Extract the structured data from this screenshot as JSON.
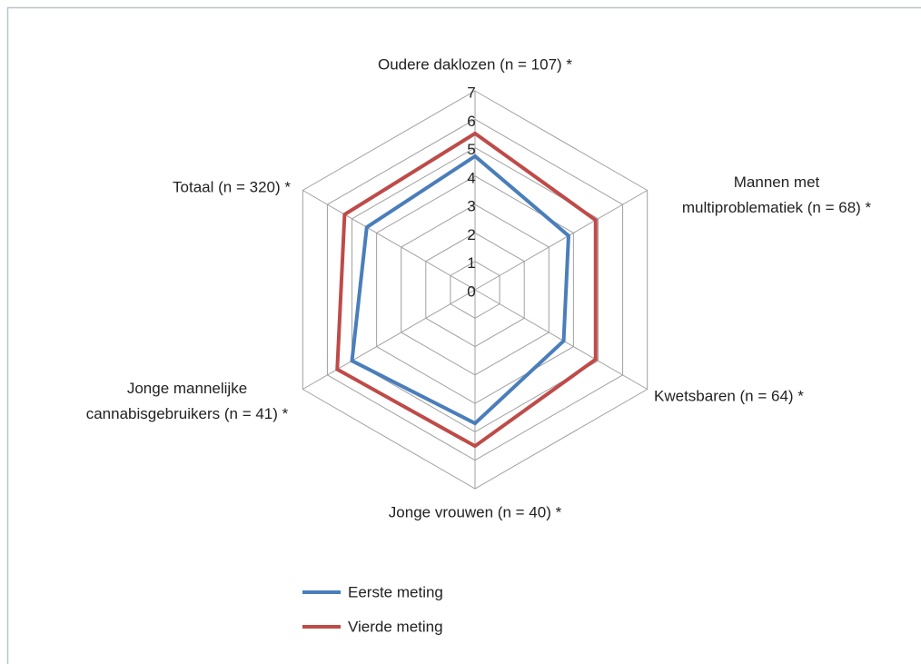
{
  "chart_data": {
    "type": "radar",
    "categories": [
      "Oudere daklozen (n = 107) *",
      "Mannen met\nmultiproblematiek (n = 68) *",
      "Kwetsbaren (n = 64) *",
      "Jonge vrouwen (n = 40) *",
      "Jonge mannelijke\ncannabisgebruikers (n = 41) *",
      "Totaal (n = 320) *"
    ],
    "series": [
      {
        "name": "Eerste meting",
        "color": "#4a7ebb",
        "values": [
          4.7,
          3.8,
          3.6,
          4.7,
          5.0,
          4.4
        ]
      },
      {
        "name": "Vierde meting",
        "color": "#be4b48",
        "values": [
          5.5,
          4.9,
          4.9,
          5.5,
          5.6,
          5.3
        ]
      }
    ],
    "rlim": [
      0,
      7
    ],
    "rticks": [
      0,
      1,
      2,
      3,
      4,
      5,
      6,
      7
    ],
    "grid": true,
    "legend": "bottom"
  }
}
